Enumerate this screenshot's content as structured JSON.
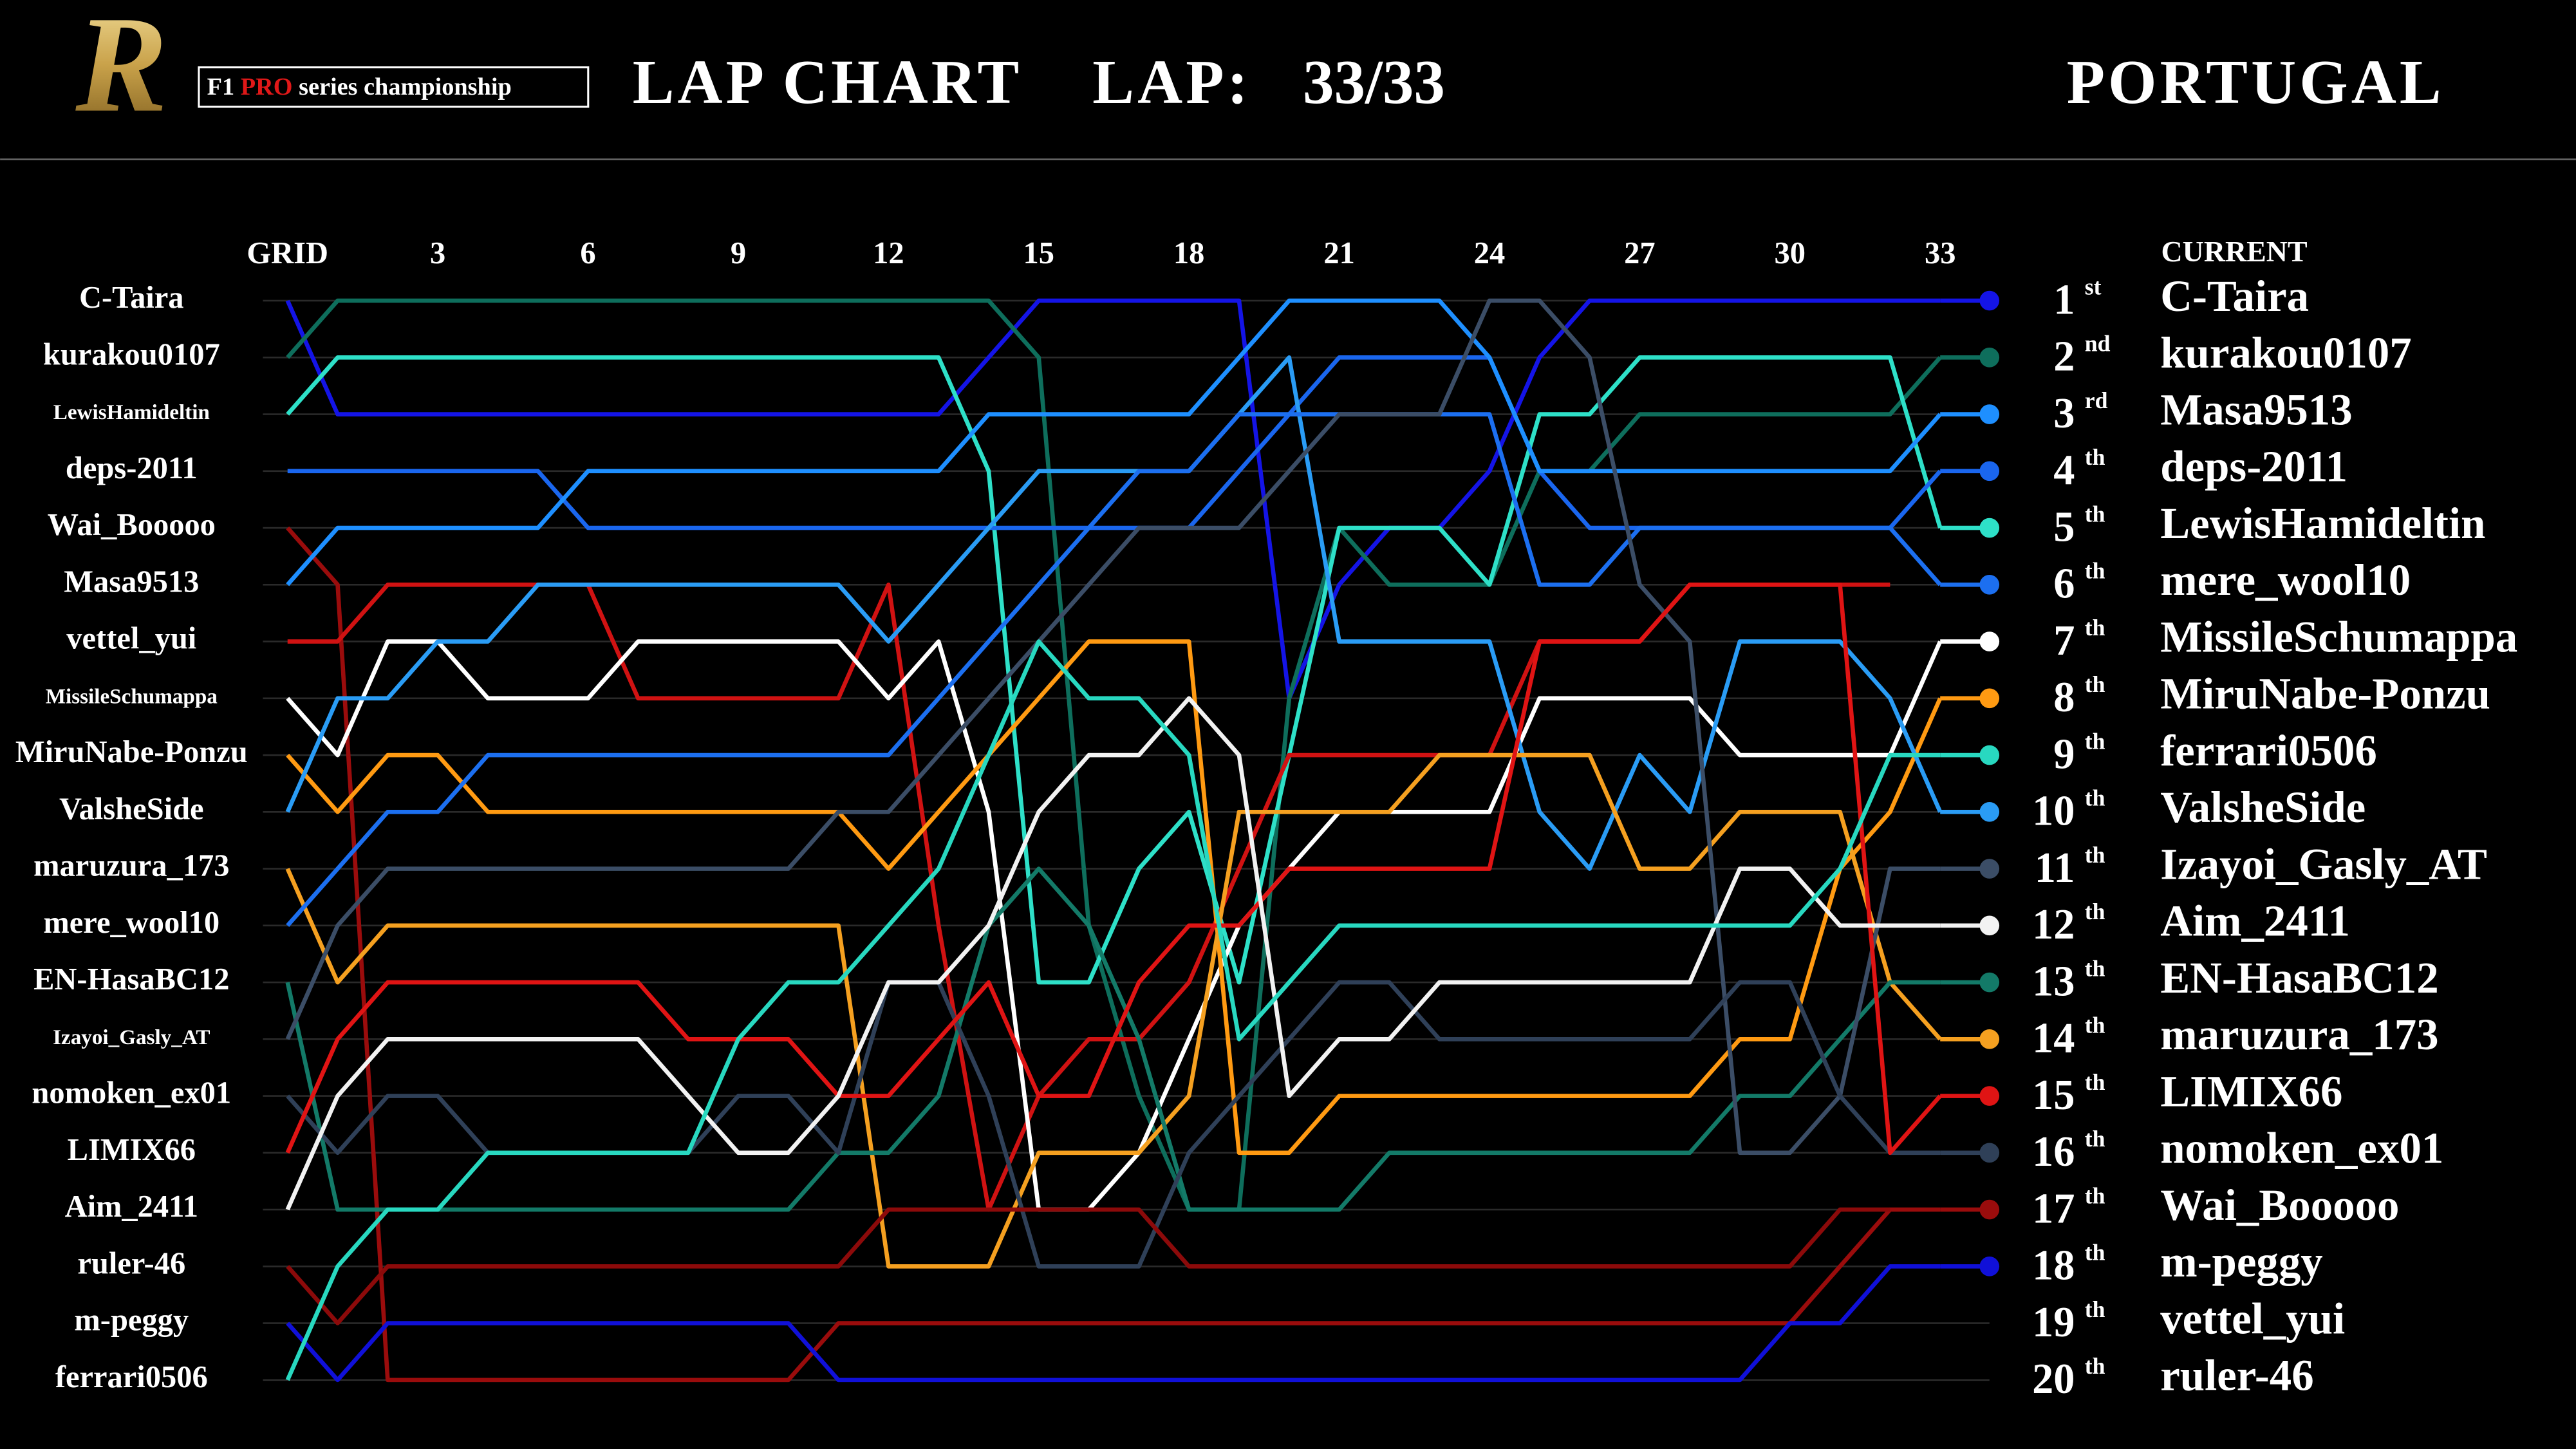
{
  "header": {
    "logo": "R",
    "series_prefix": "F1",
    "series_highlight": "PRO",
    "series_suffix": "series championship",
    "title": "LAP CHART",
    "lap_label": "LAP:",
    "lap_value": "33/33",
    "location": "PORTUGAL"
  },
  "chart_data": {
    "type": "line",
    "current_label": "CURRENT",
    "x": [
      0,
      1,
      2,
      3,
      4,
      5,
      6,
      7,
      8,
      9,
      10,
      11,
      12,
      13,
      14,
      15,
      16,
      17,
      18,
      19,
      20,
      21,
      22,
      23,
      24,
      25,
      26,
      27,
      28,
      29,
      30,
      31,
      32,
      33
    ],
    "xlim": [
      0,
      33
    ],
    "xticks": [
      {
        "value": 0,
        "label": "GRID"
      },
      3,
      6,
      9,
      12,
      15,
      18,
      21,
      24,
      27,
      30,
      33
    ],
    "ylim": [
      1,
      20
    ],
    "y_inverted": true,
    "grid": true,
    "series": [
      {
        "name": "C-Taira",
        "color": "#1414e6",
        "values": [
          1,
          3,
          3,
          3,
          3,
          3,
          3,
          3,
          3,
          3,
          3,
          3,
          3,
          3,
          2,
          1,
          1,
          1,
          1,
          1,
          8,
          6,
          5,
          5,
          4,
          2,
          1,
          1,
          1,
          1,
          1,
          1,
          1,
          1
        ]
      },
      {
        "name": "kurakou0107",
        "color": "#0e6e5c",
        "values": [
          2,
          1,
          1,
          1,
          1,
          1,
          1,
          1,
          1,
          1,
          1,
          1,
          1,
          1,
          1,
          2,
          12,
          15,
          17,
          17,
          8,
          5,
          6,
          6,
          6,
          4,
          4,
          3,
          3,
          3,
          3,
          3,
          3,
          2
        ]
      },
      {
        "name": "LewisHamideltin",
        "color": "#2ee0c8",
        "values": [
          3,
          2,
          2,
          2,
          2,
          2,
          2,
          2,
          2,
          2,
          2,
          2,
          2,
          2,
          4,
          13,
          13,
          11,
          10,
          13,
          9,
          5,
          5,
          5,
          6,
          3,
          3,
          2,
          2,
          2,
          2,
          2,
          2,
          5
        ]
      },
      {
        "name": "deps-2011",
        "color": "#1a66ee",
        "values": [
          4,
          4,
          4,
          4,
          4,
          4,
          5,
          5,
          5,
          5,
          5,
          5,
          5,
          5,
          5,
          5,
          5,
          5,
          5,
          4,
          3,
          2,
          2,
          2,
          2,
          4,
          5,
          5,
          5,
          5,
          5,
          5,
          5,
          4
        ]
      },
      {
        "name": "Wai_Booooo",
        "color": "#9a0c0c",
        "values": [
          5,
          6,
          20,
          20,
          20,
          20,
          20,
          20,
          20,
          20,
          20,
          19,
          19,
          19,
          19,
          19,
          19,
          19,
          19,
          19,
          19,
          19,
          19,
          19,
          19,
          19,
          19,
          19,
          19,
          19,
          19,
          18,
          17,
          17
        ]
      },
      {
        "name": "Masa9513",
        "color": "#1e8fff",
        "values": [
          6,
          5,
          5,
          5,
          5,
          5,
          4,
          4,
          4,
          4,
          4,
          4,
          4,
          4,
          3,
          3,
          3,
          3,
          3,
          2,
          1,
          1,
          1,
          1,
          2,
          4,
          4,
          4,
          4,
          4,
          4,
          4,
          4,
          3
        ]
      },
      {
        "name": "vettel_yui",
        "color": "#d01212",
        "values": [
          7,
          7,
          6,
          6,
          6,
          6,
          6,
          8,
          8,
          8,
          8,
          8,
          6,
          12,
          17,
          15,
          14,
          14,
          13,
          11,
          9,
          9,
          9,
          9,
          9,
          7,
          7,
          7,
          6,
          6,
          6,
          6,
          6,
          null
        ]
      },
      {
        "name": "MissileSchumappa",
        "color": "#ffffff",
        "values": [
          8,
          9,
          7,
          7,
          8,
          8,
          8,
          7,
          7,
          7,
          7,
          7,
          8,
          7,
          10,
          17,
          17,
          16,
          14,
          12,
          11,
          10,
          10,
          10,
          10,
          8,
          8,
          8,
          8,
          9,
          9,
          9,
          9,
          7
        ]
      },
      {
        "name": "MiruNabe-Ponzu",
        "color": "#ff9a12",
        "values": [
          9,
          10,
          9,
          9,
          10,
          10,
          10,
          10,
          10,
          10,
          10,
          10,
          11,
          10,
          9,
          8,
          7,
          7,
          7,
          16,
          16,
          15,
          15,
          15,
          15,
          15,
          15,
          15,
          15,
          14,
          14,
          11,
          10,
          8
        ]
      },
      {
        "name": "ValsheSide",
        "color": "#2a9cf5",
        "values": [
          10,
          8,
          8,
          7,
          7,
          6,
          6,
          6,
          6,
          6,
          6,
          6,
          7,
          6,
          5,
          4,
          4,
          4,
          4,
          3,
          2,
          7,
          7,
          7,
          7,
          10,
          11,
          9,
          10,
          7,
          7,
          7,
          8,
          10
        ]
      },
      {
        "name": "maruzura_173",
        "color": "#f5a020",
        "values": [
          11,
          13,
          12,
          12,
          12,
          12,
          12,
          12,
          12,
          12,
          12,
          12,
          18,
          18,
          18,
          16,
          16,
          16,
          15,
          10,
          10,
          10,
          10,
          9,
          9,
          9,
          9,
          11,
          11,
          10,
          10,
          10,
          13,
          14
        ]
      },
      {
        "name": "mere_wool10",
        "color": "#1c6ff0",
        "values": [
          12,
          11,
          10,
          10,
          9,
          9,
          9,
          9,
          9,
          9,
          9,
          9,
          9,
          8,
          7,
          6,
          5,
          4,
          4,
          3,
          3,
          3,
          3,
          3,
          3,
          6,
          6,
          5,
          5,
          5,
          5,
          5,
          5,
          6
        ]
      },
      {
        "name": "EN-HasaBC12",
        "color": "#137a68",
        "values": [
          13,
          17,
          17,
          17,
          17,
          17,
          17,
          17,
          17,
          17,
          17,
          16,
          16,
          15,
          12,
          11,
          12,
          14,
          17,
          17,
          17,
          17,
          16,
          16,
          16,
          16,
          16,
          16,
          16,
          15,
          15,
          14,
          13,
          13
        ]
      },
      {
        "name": "Izayoi_Gasly_AT",
        "color": "#3b4d66",
        "values": [
          14,
          12,
          11,
          11,
          11,
          11,
          11,
          11,
          11,
          11,
          11,
          10,
          10,
          9,
          8,
          7,
          6,
          5,
          5,
          5,
          4,
          3,
          3,
          3,
          1,
          1,
          2,
          6,
          7,
          16,
          16,
          15,
          11,
          11
        ]
      },
      {
        "name": "nomoken_ex01",
        "color": "#2f4058",
        "values": [
          15,
          16,
          15,
          15,
          16,
          16,
          16,
          16,
          16,
          15,
          15,
          16,
          13,
          13,
          15,
          18,
          18,
          18,
          16,
          15,
          14,
          13,
          13,
          14,
          14,
          14,
          14,
          14,
          14,
          13,
          13,
          15,
          16,
          16
        ]
      },
      {
        "name": "LIMIX66",
        "color": "#e01414",
        "values": [
          16,
          14,
          13,
          13,
          13,
          13,
          13,
          13,
          14,
          14,
          14,
          15,
          15,
          14,
          13,
          15,
          15,
          13,
          12,
          12,
          11,
          11,
          11,
          11,
          11,
          7,
          7,
          7,
          6,
          6,
          6,
          6,
          16,
          15
        ]
      },
      {
        "name": "Aim_2411",
        "color": "#f2f2f2",
        "values": [
          17,
          15,
          14,
          14,
          14,
          14,
          14,
          14,
          15,
          16,
          16,
          15,
          13,
          13,
          12,
          10,
          9,
          9,
          8,
          9,
          15,
          14,
          14,
          13,
          13,
          13,
          13,
          13,
          13,
          11,
          11,
          12,
          12,
          12
        ]
      },
      {
        "name": "ruler-46",
        "color": "#8c0a0a",
        "values": [
          18,
          19,
          18,
          18,
          18,
          18,
          18,
          18,
          18,
          18,
          18,
          18,
          17,
          17,
          17,
          17,
          17,
          17,
          18,
          18,
          18,
          18,
          18,
          18,
          18,
          18,
          18,
          18,
          18,
          18,
          18,
          17,
          17,
          null
        ]
      },
      {
        "name": "m-peggy",
        "color": "#1010d8",
        "values": [
          19,
          20,
          19,
          19,
          19,
          19,
          19,
          19,
          19,
          19,
          19,
          20,
          20,
          20,
          20,
          20,
          20,
          20,
          20,
          20,
          20,
          20,
          20,
          20,
          20,
          20,
          20,
          20,
          20,
          20,
          19,
          19,
          18,
          18
        ]
      },
      {
        "name": "ferrari0506",
        "color": "#28d8c0",
        "values": [
          20,
          18,
          17,
          17,
          16,
          16,
          16,
          16,
          16,
          14,
          13,
          13,
          12,
          11,
          9,
          7,
          8,
          8,
          9,
          14,
          13,
          12,
          12,
          12,
          12,
          12,
          12,
          12,
          12,
          12,
          12,
          11,
          9,
          9
        ]
      }
    ],
    "standings": [
      {
        "position": 1,
        "suffix": "st",
        "name": "C-Taira"
      },
      {
        "position": 2,
        "suffix": "nd",
        "name": "kurakou0107"
      },
      {
        "position": 3,
        "suffix": "rd",
        "name": "Masa9513"
      },
      {
        "position": 4,
        "suffix": "th",
        "name": "deps-2011"
      },
      {
        "position": 5,
        "suffix": "th",
        "name": "LewisHamideltin"
      },
      {
        "position": 6,
        "suffix": "th",
        "name": "mere_wool10"
      },
      {
        "position": 7,
        "suffix": "th",
        "name": "MissileSchumappa"
      },
      {
        "position": 8,
        "suffix": "th",
        "name": "MiruNabe-Ponzu"
      },
      {
        "position": 9,
        "suffix": "th",
        "name": "ferrari0506"
      },
      {
        "position": 10,
        "suffix": "th",
        "name": "ValsheSide"
      },
      {
        "position": 11,
        "suffix": "th",
        "name": "Izayoi_Gasly_AT"
      },
      {
        "position": 12,
        "suffix": "th",
        "name": "Aim_2411"
      },
      {
        "position": 13,
        "suffix": "th",
        "name": "EN-HasaBC12"
      },
      {
        "position": 14,
        "suffix": "th",
        "name": "maruzura_173"
      },
      {
        "position": 15,
        "suffix": "th",
        "name": "LIMIX66"
      },
      {
        "position": 16,
        "suffix": "th",
        "name": "nomoken_ex01"
      },
      {
        "position": 17,
        "suffix": "th",
        "name": "Wai_Booooo"
      },
      {
        "position": 18,
        "suffix": "th",
        "name": "m-peggy"
      },
      {
        "position": 19,
        "suffix": "th",
        "name": "vettel_yui"
      },
      {
        "position": 20,
        "suffix": "th",
        "name": "ruler-46"
      }
    ]
  }
}
